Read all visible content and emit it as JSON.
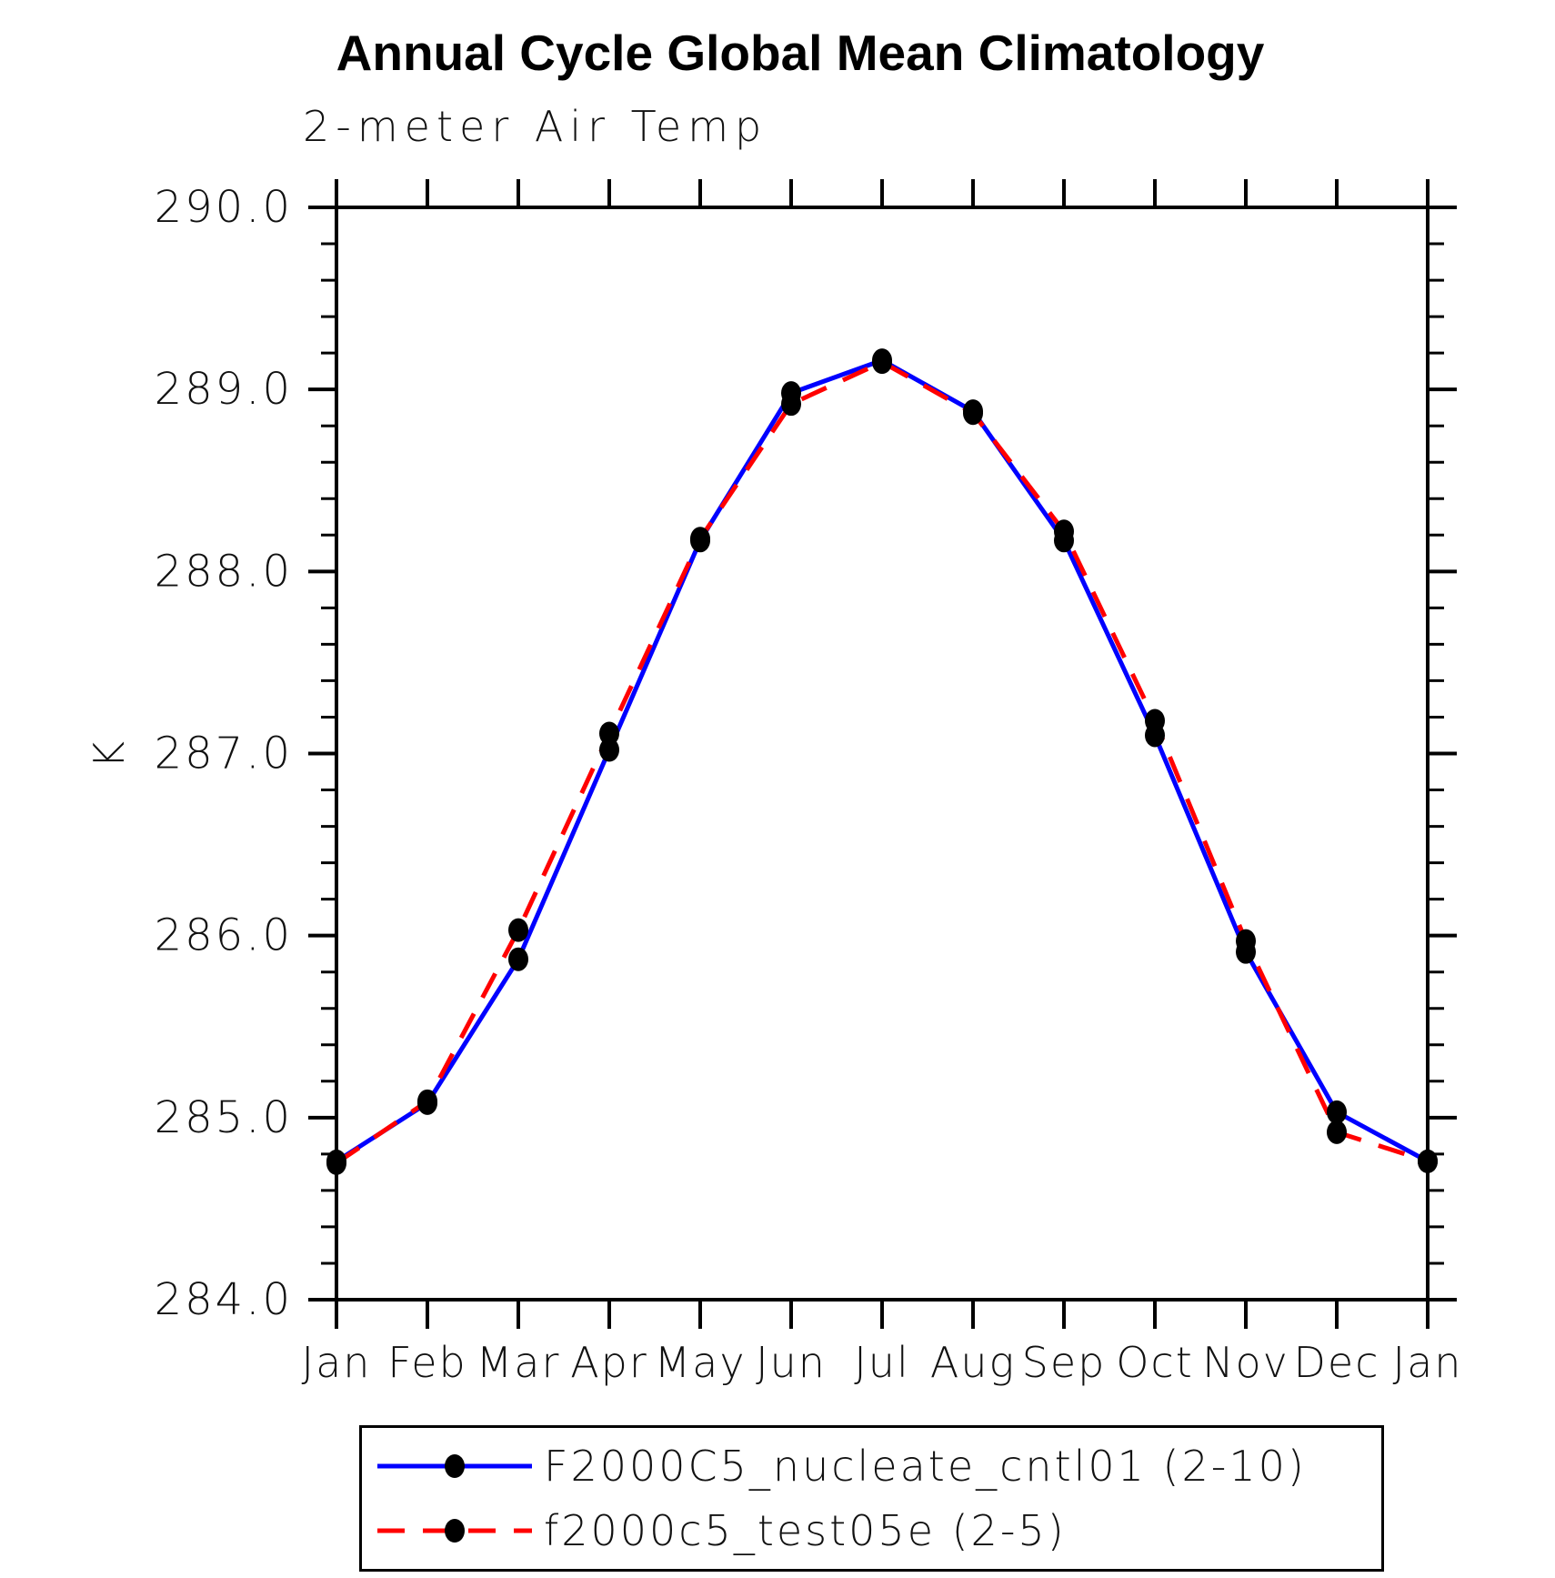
{
  "chart_data": {
    "type": "line",
    "title": "Annual Cycle Global Mean Climatology",
    "subtitle": "2-meter Air Temp",
    "ylabel": "K",
    "categories": [
      "Jan",
      "Feb",
      "Mar",
      "Apr",
      "May",
      "Jun",
      "Jul",
      "Aug",
      "Sep",
      "Oct",
      "Nov",
      "Dec",
      "Jan"
    ],
    "ylim": [
      284.0,
      290.0
    ],
    "ytick_major_step": 1.0,
    "ytick_minor_step": 0.2,
    "ytick_labels": [
      "284.0",
      "285.0",
      "286.0",
      "287.0",
      "288.0",
      "289.0",
      "290.0"
    ],
    "grid": false,
    "legend_position": "bottom",
    "axis_color": "#000000",
    "marker_color": "#000000",
    "series": [
      {
        "name": "F2000C5_nucleate_cntl01 (2-10)",
        "color": "#0000ff",
        "style": "solid",
        "marker": "filled-circle",
        "values": [
          284.76,
          285.08,
          285.87,
          287.02,
          288.17,
          288.98,
          289.16,
          288.88,
          288.17,
          287.1,
          285.91,
          285.03,
          284.76
        ]
      },
      {
        "name": "f2000c5_test05e (2-5)",
        "color": "#ff0000",
        "style": "dashed",
        "marker": "filled-circle",
        "values": [
          284.75,
          285.09,
          286.03,
          287.11,
          288.18,
          288.92,
          289.15,
          288.87,
          288.22,
          287.18,
          285.97,
          284.92,
          284.76
        ]
      }
    ]
  }
}
